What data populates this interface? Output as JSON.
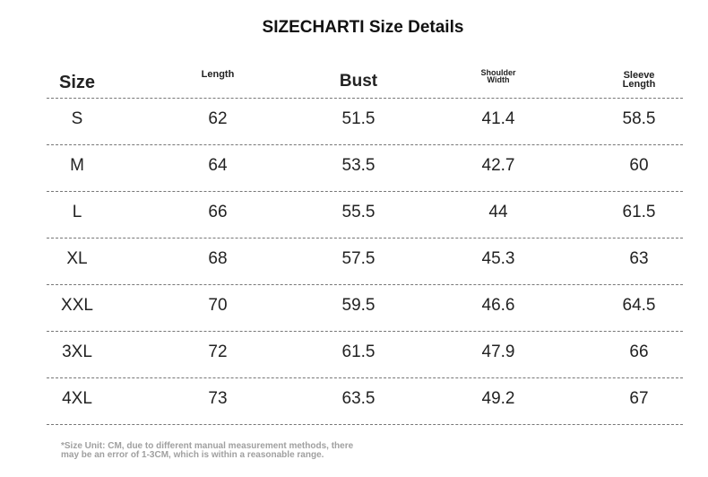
{
  "header": {
    "title": "SIZECHARTI Size Details"
  },
  "table": {
    "headers": [
      [
        "Size"
      ],
      [
        "Length"
      ],
      [
        "Bust"
      ],
      [
        "Shoulder",
        "Width"
      ],
      [
        "Sleeve",
        "Length"
      ]
    ],
    "rows": [
      [
        "S",
        62,
        51.5,
        41.4,
        58.5
      ],
      [
        "M",
        64,
        53.5,
        42.7,
        60
      ],
      [
        "L",
        66,
        55.5,
        44,
        61.5
      ],
      [
        "XL",
        68,
        57.5,
        45.3,
        63
      ],
      [
        "XXL",
        70,
        59.5,
        46.6,
        64.5
      ],
      [
        "3XL",
        72,
        61.5,
        47.9,
        66
      ],
      [
        "4XL",
        73,
        63.5,
        49.2,
        67
      ]
    ]
  },
  "footnote": [
    "*Size Unit: CM, due to different manual measurement methods, there",
    "may be an error of 1-3CM, which is within a reasonable range."
  ]
}
